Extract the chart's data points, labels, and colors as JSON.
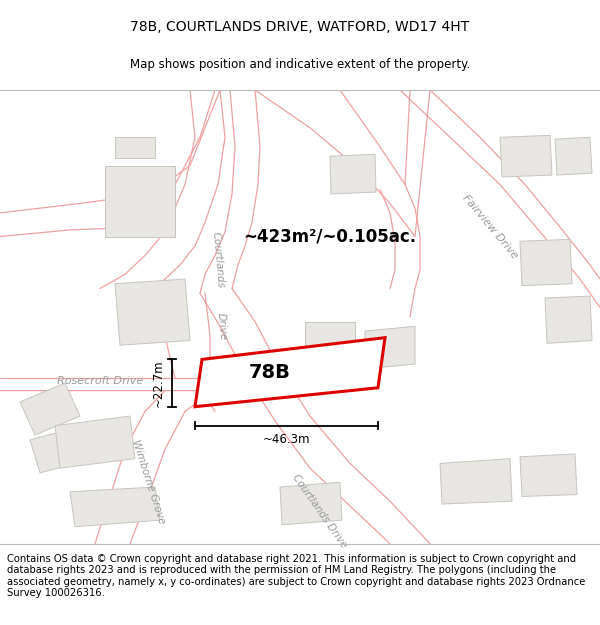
{
  "title": "78B, COURTLANDS DRIVE, WATFORD, WD17 4HT",
  "subtitle": "Map shows position and indicative extent of the property.",
  "footer": "Contains OS data © Crown copyright and database right 2021. This information is subject to Crown copyright and database rights 2023 and is reproduced with the permission of HM Land Registry. The polygons (including the associated geometry, namely x, y co-ordinates) are subject to Crown copyright and database rights 2023 Ordnance Survey 100026316.",
  "area_label": "~423m²/~0.105ac.",
  "label_78b": "78B",
  "dim_width": "~46.3m",
  "dim_height": "~22.7m",
  "map_bg": "#ffffff",
  "building_color": "#e8e6e2",
  "building_edge": "#c8c5bf",
  "highlight_color": "#dd0000",
  "highlight_fill": "#ffffff",
  "road_line_color": "#f0a0a0",
  "road_fill": "#ffffff",
  "label_color": "#999999",
  "title_fontsize": 10,
  "subtitle_fontsize": 8.5,
  "footer_fontsize": 7.2
}
